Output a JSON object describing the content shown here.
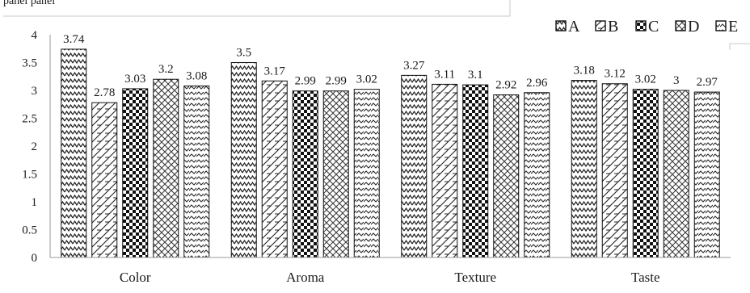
{
  "top_fragment_text": "panel panel",
  "chart_data": {
    "type": "bar",
    "categories": [
      "Color",
      "Aroma",
      "Texture",
      "Taste"
    ],
    "series": [
      {
        "name": "A",
        "values": [
          3.74,
          3.5,
          3.27,
          3.18
        ],
        "labels": [
          "3.74",
          "3.5",
          "3.27",
          "3.18"
        ],
        "pattern": "zigzag"
      },
      {
        "name": "B",
        "values": [
          2.78,
          3.17,
          3.11,
          3.12
        ],
        "labels": [
          "2.78",
          "3.17",
          "3.11",
          "3.12"
        ],
        "pattern": "brick"
      },
      {
        "name": "C",
        "values": [
          3.03,
          2.99,
          3.1,
          3.02
        ],
        "labels": [
          "3.03",
          "2.99",
          "3.1",
          "3.02"
        ],
        "pattern": "checker"
      },
      {
        "name": "D",
        "values": [
          3.2,
          2.99,
          2.92,
          3.0
        ],
        "labels": [
          "3.2",
          "2.99",
          "2.92",
          "3"
        ],
        "pattern": "crosshatch"
      },
      {
        "name": "E",
        "values": [
          3.08,
          3.02,
          2.96,
          2.97
        ],
        "labels": [
          "3.08",
          "3.02",
          "2.96",
          "2.97"
        ],
        "pattern": "wave"
      }
    ],
    "ylim": [
      0,
      4
    ],
    "yticks": [
      "0",
      "0.5",
      "1",
      "1.5",
      "2",
      "2.5",
      "3",
      "3.5",
      "4"
    ],
    "title": "",
    "xlabel": "",
    "ylabel": "",
    "grid": false,
    "legend_position": "top-right"
  }
}
